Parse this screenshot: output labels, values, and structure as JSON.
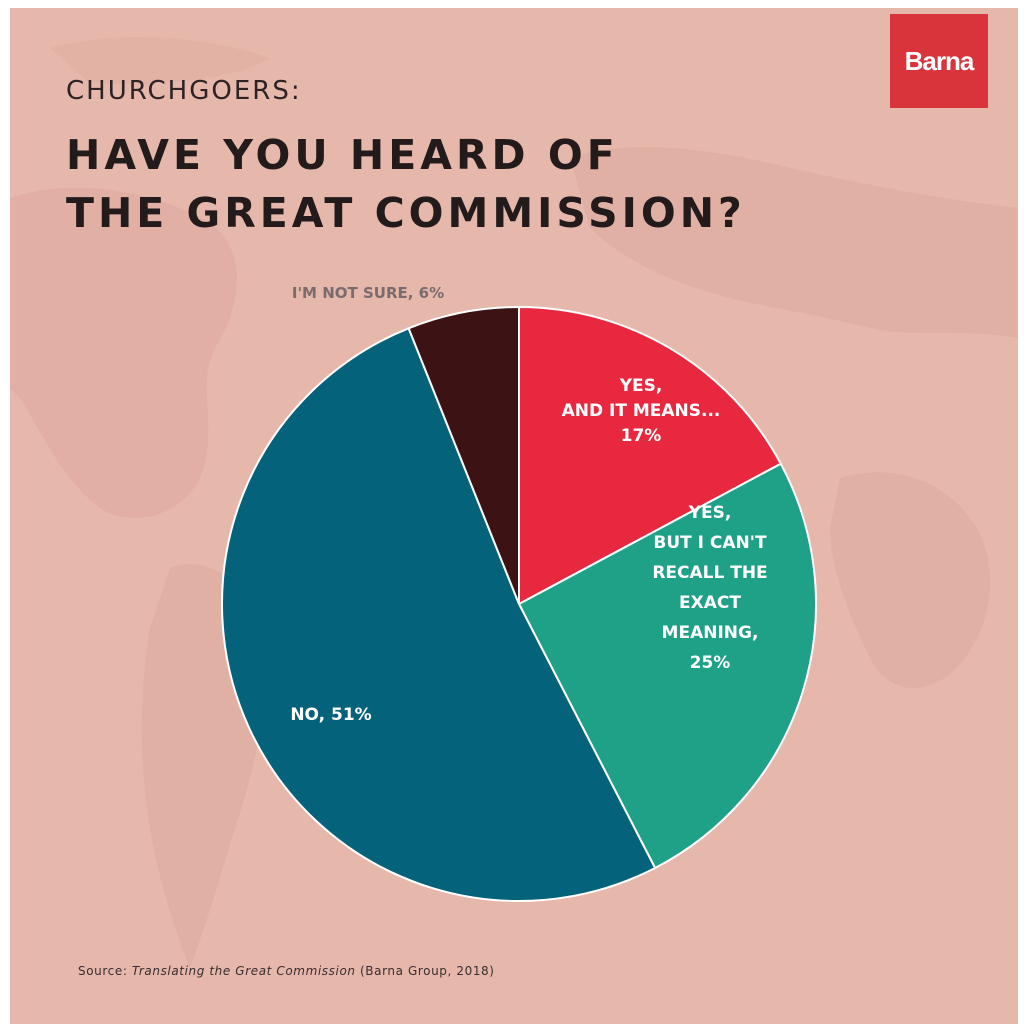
{
  "brand": {
    "logo_text": "Barna",
    "logo_color": "#d9343c"
  },
  "header": {
    "kicker": "CHURCHGOERS:",
    "title_line1": "HAVE YOU HEARD OF",
    "title_line2": "THE GREAT COMMISSION?"
  },
  "source": {
    "prefix": "Source: ",
    "title": "Translating the Great Commission",
    "suffix": " (Barna Group, 2018)"
  },
  "chart_data": {
    "type": "pie",
    "title": "HAVE YOU HEARD OF THE GREAT COMMISSION?",
    "subtitle": "CHURCHGOERS:",
    "start": "12 o'clock",
    "direction": "clockwise",
    "slices": [
      {
        "key": "yes-means",
        "label_lines": [
          "YES,",
          "AND IT MEANS...",
          "17%"
        ],
        "value": 17,
        "color": "#e8283e",
        "label_inside": true
      },
      {
        "key": "yes-cant-recall",
        "label_lines": [
          "YES,",
          "BUT I CAN'T",
          "RECALL THE",
          "EXACT",
          "MEANING,",
          "25%"
        ],
        "value": 25,
        "color": "#1fa188",
        "label_inside": true
      },
      {
        "key": "no",
        "label_lines": [
          "NO, 51%"
        ],
        "value": 51,
        "color": "#04627a",
        "label_inside": true
      },
      {
        "key": "not-sure",
        "label_lines": [
          "I'M NOT SURE, 6%"
        ],
        "value": 6,
        "color": "#3c1214",
        "label_inside": false
      }
    ]
  }
}
